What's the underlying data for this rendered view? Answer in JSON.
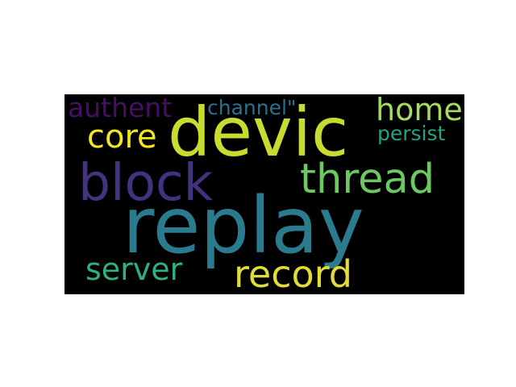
{
  "wordcloud": {
    "background_color": "#000000",
    "words": [
      {
        "text": "replay",
        "color": "#2a7b8e"
      },
      {
        "text": "devic",
        "color": "#c7dc2e"
      },
      {
        "text": "block",
        "color": "#45327f"
      },
      {
        "text": "thread",
        "color": "#6cc860"
      },
      {
        "text": "record",
        "color": "#e1dd37"
      },
      {
        "text": "home",
        "color": "#a6db5e"
      },
      {
        "text": "server",
        "color": "#30b07f"
      },
      {
        "text": "core",
        "color": "#f5e623"
      },
      {
        "text": "authent",
        "color": "#470f63"
      },
      {
        "text": "channel\"",
        "color": "#2c6f8e"
      },
      {
        "text": "persist",
        "color": "#25a283"
      }
    ]
  }
}
